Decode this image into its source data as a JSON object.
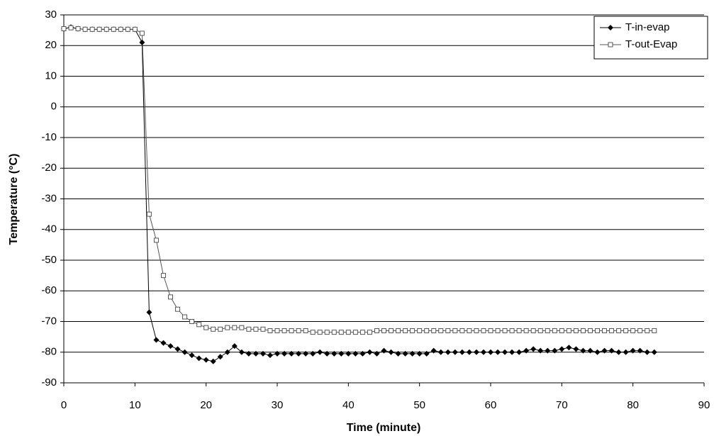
{
  "chart_data": {
    "type": "line",
    "x_label": "Time (minute)",
    "y_label": "Temperature (°C)",
    "x": [
      0,
      1,
      2,
      3,
      4,
      5,
      6,
      7,
      8,
      9,
      10,
      11,
      12,
      13,
      14,
      15,
      16,
      17,
      18,
      19,
      20,
      21,
      22,
      23,
      24,
      25,
      26,
      27,
      28,
      29,
      30,
      31,
      32,
      33,
      34,
      35,
      36,
      37,
      38,
      39,
      40,
      41,
      42,
      43,
      44,
      45,
      46,
      47,
      48,
      49,
      50,
      51,
      52,
      53,
      54,
      55,
      56,
      57,
      58,
      59,
      60,
      61,
      62,
      63,
      64,
      65,
      66,
      67,
      68,
      69,
      70,
      71,
      72,
      73,
      74,
      75,
      76,
      77,
      78,
      79,
      80,
      81,
      82,
      83
    ],
    "series": [
      {
        "name": "T-in-evap",
        "color": "#000000",
        "marker": "diamond",
        "values": [
          25.5,
          26,
          25.5,
          25.3,
          25.3,
          25.3,
          25.3,
          25.3,
          25.3,
          25.3,
          25.3,
          21,
          -67,
          -76,
          -77,
          -78,
          -79,
          -80,
          -81,
          -82,
          -82.5,
          -83,
          -81.5,
          -80,
          -78,
          -80,
          -80.5,
          -80.5,
          -80.5,
          -81,
          -80.5,
          -80.5,
          -80.5,
          -80.5,
          -80.5,
          -80.5,
          -80,
          -80.5,
          -80.5,
          -80.5,
          -80.5,
          -80.5,
          -80.5,
          -80,
          -80.5,
          -79.5,
          -80,
          -80.5,
          -80.5,
          -80.5,
          -80.5,
          -80.5,
          -79.5,
          -80,
          -80,
          -80,
          -80,
          -80,
          -80,
          -80,
          -80,
          -80,
          -80,
          -80,
          -80,
          -79.5,
          -79,
          -79.5,
          -79.5,
          -79.5,
          -79,
          -78.5,
          -79,
          -79.5,
          -79.5,
          -80,
          -79.5,
          -79.5,
          -80,
          -80,
          -79.5,
          -79.5,
          -80,
          -80
        ]
      },
      {
        "name": "T-out-Evap",
        "color": "#555555",
        "marker": "square-open",
        "values": [
          25.5,
          25.8,
          25.5,
          25.3,
          25.3,
          25.3,
          25.3,
          25.3,
          25.3,
          25.3,
          25.3,
          24,
          -35,
          -43.5,
          -55,
          -62,
          -66,
          -68.5,
          -70,
          -71,
          -72,
          -72.5,
          -72.5,
          -72,
          -72,
          -72,
          -72.5,
          -72.5,
          -72.5,
          -73,
          -73,
          -73,
          -73,
          -73,
          -73,
          -73.5,
          -73.5,
          -73.5,
          -73.5,
          -73.5,
          -73.5,
          -73.5,
          -73.5,
          -73.5,
          -73,
          -73,
          -73,
          -73,
          -73,
          -73,
          -73,
          -73,
          -73,
          -73,
          -73,
          -73,
          -73,
          -73,
          -73,
          -73,
          -73,
          -73,
          -73,
          -73,
          -73,
          -73,
          -73,
          -73,
          -73,
          -73,
          -73,
          -73,
          -73,
          -73,
          -73,
          -73,
          -73,
          -73,
          -73,
          -73,
          -73,
          -73,
          -73,
          -73
        ]
      }
    ],
    "xlim": [
      0,
      90
    ],
    "xticks": [
      0,
      10,
      20,
      30,
      40,
      50,
      60,
      70,
      80,
      90
    ],
    "ylim": [
      -90,
      30
    ],
    "yticks": [
      -90,
      -80,
      -70,
      -60,
      -50,
      -40,
      -30,
      -20,
      -10,
      0,
      10,
      20,
      30
    ],
    "grid": true,
    "legend": "upper right"
  }
}
